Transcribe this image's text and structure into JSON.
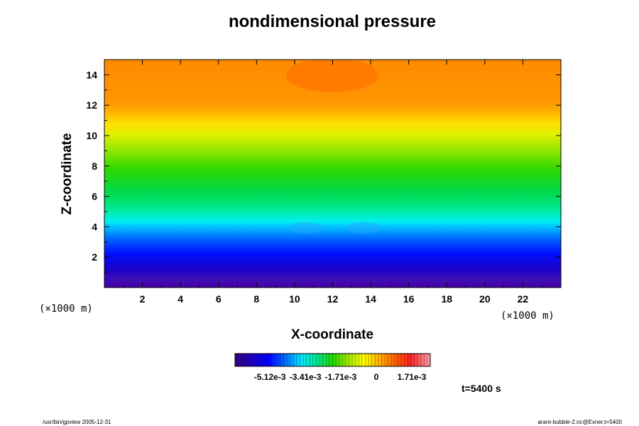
{
  "chart_data": {
    "type": "heatmap",
    "title": "nondimensional pressure",
    "xlabel": "X-coordinate",
    "ylabel": "Z-coordinate",
    "x_unit": "(×1000 m)",
    "y_unit": "(×1000 m)",
    "xlim": [
      0,
      24
    ],
    "ylim": [
      0,
      15
    ],
    "x_ticks": [
      "2",
      "4",
      "6",
      "8",
      "10",
      "12",
      "14",
      "16",
      "18",
      "20",
      "22"
    ],
    "y_ticks": [
      "2",
      "4",
      "6",
      "8",
      "10",
      "12",
      "14"
    ],
    "colorbar": {
      "range": [
        -0.0068,
        0.0026
      ],
      "tick_values": [
        -0.00512,
        -0.00341,
        -0.00171,
        0,
        0.00171
      ],
      "tick_labels": [
        "-5.12e-3",
        "-3.41e-3",
        "-1.71e-3",
        "0",
        "1.71e-3"
      ]
    },
    "annotations": {
      "time": "t=5400 s",
      "footer_left": "/usr/bin/gpview 2005-12-31",
      "footer_right": "arare-bubble-2.nc@Exner,t=5400"
    }
  }
}
